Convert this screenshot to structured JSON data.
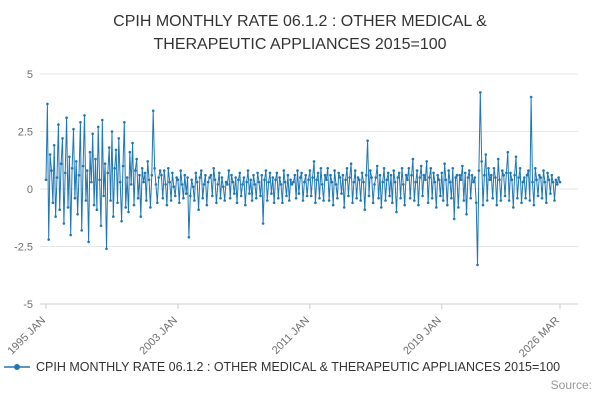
{
  "title": {
    "line1": "CPIH MONTHLY RATE 06.1.2 : OTHER MEDICAL &",
    "line2": "THERAPEUTIC APPLIANCES 2015=100"
  },
  "legend": {
    "label": "CPIH MONTHLY RATE 06.1.2 : OTHER MEDICAL & THERAPEUTIC APPLIANCES 2015=100"
  },
  "source": {
    "label": "Source:"
  },
  "colors": {
    "line": "#1f77b4",
    "grid": "#e6e6e6",
    "axis_line": "#cccccc",
    "axis_text": "#707070",
    "title_text": "#333333"
  },
  "chart_data": {
    "type": "line",
    "title": "CPIH MONTHLY RATE 06.1.2 : OTHER MEDICAL & THERAPEUTIC APPLIANCES 2015=100",
    "xlabel": "",
    "ylabel": "",
    "ylim": [
      -5,
      5
    ],
    "grid": true,
    "legend_position": "bottom",
    "marker": "circle",
    "x_start": "1995 JAN",
    "x_end": "2026 MAR",
    "x_frequency": "monthly",
    "y_ticks": [
      5,
      2.5,
      0,
      -2.5,
      -5
    ],
    "y_tick_labels": [
      "5",
      "2.5",
      "0",
      "-2.5",
      "-5"
    ],
    "x_tick_labels": [
      "1995 JAN",
      "2003 JAN",
      "2011 JAN",
      "2019 JAN",
      "2026 MAR"
    ],
    "x_tick_indices": [
      0,
      96,
      192,
      288,
      374
    ],
    "values": [
      0.4,
      3.7,
      -2.2,
      1.5,
      0.8,
      -0.6,
      1.9,
      -1.2,
      0.5,
      2.8,
      -0.9,
      1.1,
      2.2,
      -1.5,
      0.7,
      3.1,
      -0.8,
      1.4,
      -2.0,
      0.9,
      2.6,
      -0.4,
      1.2,
      -1.1,
      0.6,
      2.9,
      -1.8,
      1.0,
      3.2,
      -0.5,
      0.8,
      -2.3,
      1.6,
      0.3,
      2.4,
      -0.7,
      1.3,
      -0.9,
      2.7,
      0.4,
      -1.6,
      3.0,
      -0.3,
      1.1,
      -2.6,
      0.7,
      1.8,
      -0.5,
      2.5,
      -1.2,
      0.9,
      1.7,
      -0.6,
      2.2,
      0.3,
      -1.4,
      1.0,
      2.9,
      -0.8,
      0.5,
      -1.0,
      1.6,
      0.2,
      2.0,
      -0.7,
      0.8,
      1.3,
      -0.4,
      0.6,
      -1.2,
      0.9,
      0.3,
      0.7,
      -0.5,
      1.2,
      0.4,
      -0.8,
      0.6,
      3.4,
      0.9,
      0.2,
      -0.6,
      0.5,
      0.8,
      0.6,
      -0.4,
      0.8,
      0.2,
      -0.7,
      0.9,
      0.3,
      -0.5,
      0.7,
      0.1,
      -0.3,
      0.5,
      0.4,
      -0.6,
      0.8,
      0.2,
      -0.4,
      0.6,
      -0.2,
      0.5,
      -2.1,
      -0.3,
      0.4,
      0.1,
      -0.5,
      0.7,
      0.3,
      -0.9,
      0.5,
      0.8,
      -0.4,
      0.2,
      0.6,
      -0.7,
      0.3,
      0.5,
      0.6,
      -0.3,
      0.9,
      0.4,
      -0.6,
      0.2,
      0.7,
      -0.4,
      0.5,
      0.1,
      -0.5,
      0.3,
      0.2,
      0.8,
      -0.4,
      0.6,
      0.3,
      -0.2,
      0.5,
      -0.6,
      0.4,
      0.7,
      -0.3,
      0.2,
      0.5,
      -0.7,
      0.3,
      0.8,
      -0.2,
      0.4,
      -0.5,
      0.6,
      0.2,
      -0.4,
      0.7,
      0.3,
      -0.3,
      0.6,
      -1.5,
      0.4,
      0.8,
      -0.5,
      0.3,
      0.7,
      -0.2,
      0.5,
      -0.6,
      0.4,
      0.7,
      -0.4,
      0.5,
      0.2,
      -0.6,
      0.8,
      0.3,
      -0.3,
      0.6,
      -0.5,
      0.4,
      0.2,
      0.3,
      0.6,
      -0.4,
      0.8,
      -0.2,
      0.5,
      0.7,
      -0.5,
      0.3,
      0.6,
      -0.3,
      0.4,
      0.8,
      -0.3,
      0.5,
      1.2,
      -0.6,
      0.4,
      0.7,
      -0.4,
      0.9,
      0.2,
      -0.5,
      0.6,
      0.4,
      0.9,
      -0.5,
      0.6,
      0.3,
      -0.7,
      0.8,
      0.2,
      -0.4,
      0.7,
      0.5,
      -0.2,
      0.6,
      -0.8,
      0.4,
      0.9,
      -0.3,
      0.5,
      1.1,
      -0.6,
      0.3,
      0.8,
      -0.4,
      0.5,
      0.4,
      -0.5,
      0.7,
      0.3,
      -0.9,
      0.6,
      2.1,
      -0.3,
      0.8,
      0.5,
      -0.6,
      0.2,
      0.5,
      1.0,
      -0.4,
      0.6,
      -0.8,
      0.3,
      0.9,
      -0.5,
      0.4,
      0.7,
      -0.3,
      0.6,
      -0.6,
      0.8,
      0.3,
      -1.0,
      0.5,
      0.7,
      -0.4,
      0.9,
      0.2,
      -0.7,
      0.6,
      0.4,
      0.9,
      -0.4,
      0.6,
      1.3,
      -0.5,
      0.3,
      0.8,
      -0.7,
      0.5,
      1.0,
      -0.3,
      0.6,
      0.4,
      1.2,
      -0.6,
      0.5,
      0.9,
      -0.4,
      0.7,
      0.3,
      -0.8,
      0.6,
      0.4,
      -0.3,
      0.7,
      -0.5,
      1.1,
      0.4,
      -0.7,
      0.8,
      0.3,
      -0.4,
      0.9,
      -1.3,
      0.5,
      0.6,
      -0.8,
      0.6,
      0.4,
      1.0,
      -0.5,
      0.7,
      -1.1,
      0.5,
      0.8,
      -0.4,
      0.6,
      0.3,
      0.5,
      -0.6,
      -3.3,
      0.8,
      4.2,
      1.2,
      -0.7,
      0.6,
      1.5,
      -0.5,
      0.9,
      0.4,
      0.6,
      -0.4,
      0.9,
      0.5,
      -0.7,
      1.3,
      0.4,
      -0.5,
      0.8,
      0.6,
      -0.3,
      0.7,
      1.6,
      -0.5,
      0.7,
      0.4,
      -0.8,
      0.6,
      1.4,
      -0.4,
      0.5,
      0.9,
      -0.6,
      0.3,
      0.5,
      -0.4,
      0.6,
      0.8,
      -0.5,
      4.0,
      0.3,
      -0.7,
      0.9,
      0.4,
      -0.3,
      0.6,
      0.5,
      -0.4,
      0.8,
      0.3,
      -0.6,
      0.7,
      0.4,
      -0.2,
      0.6,
      0.3,
      -0.5,
      0.4,
      0.2,
      0.5,
      0.3
    ]
  }
}
